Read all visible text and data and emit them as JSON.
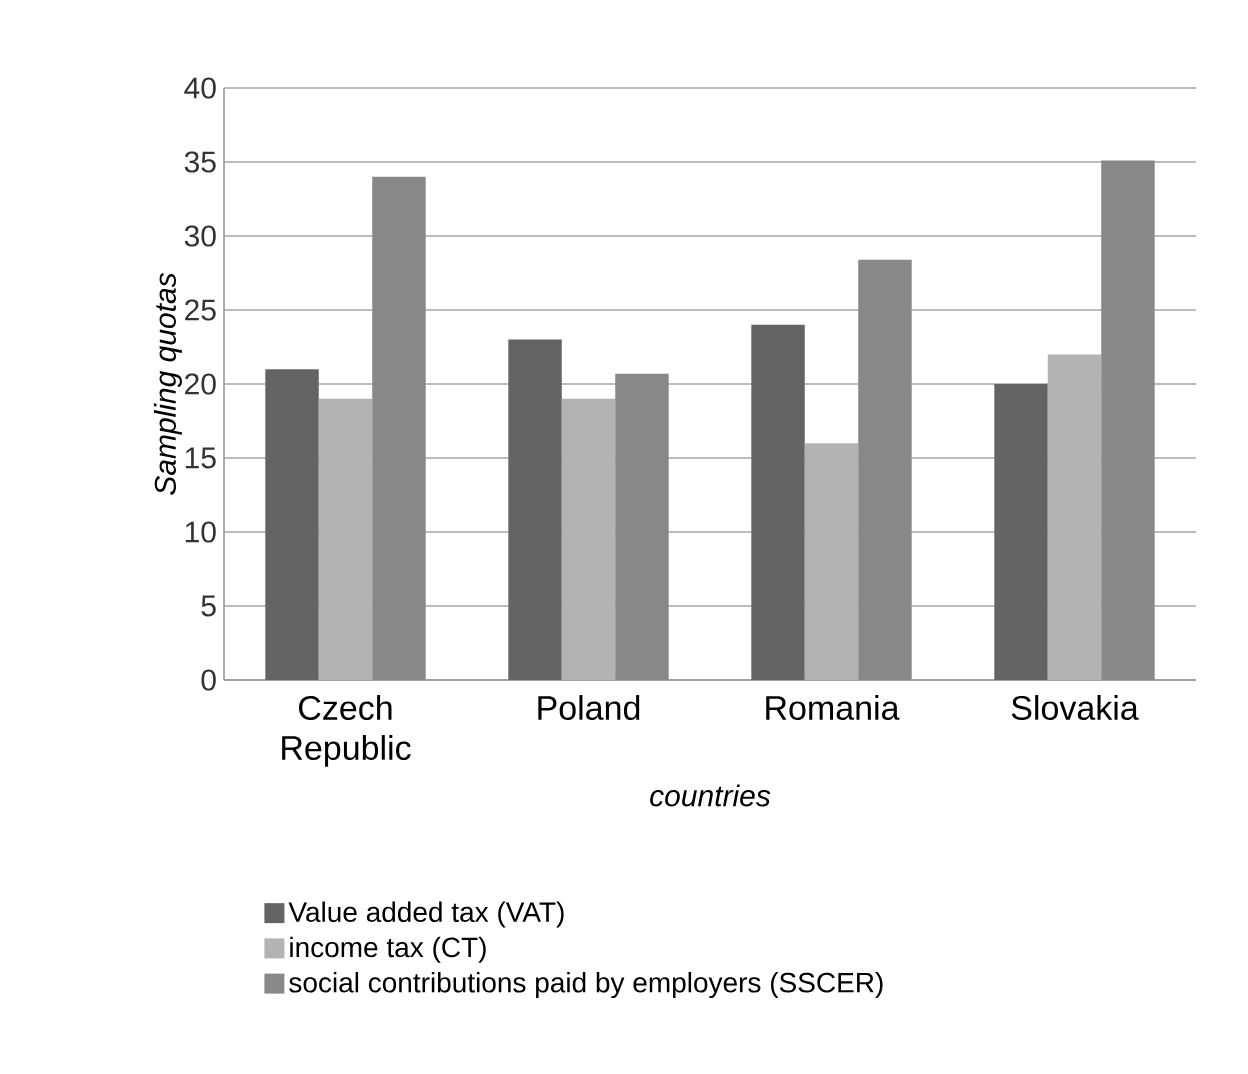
{
  "chart_data": {
    "type": "bar",
    "xlabel": "countries",
    "ylabel": "Sampling quotas",
    "categories": [
      "Czech Republic",
      "Poland",
      "Romania",
      "Slovakia"
    ],
    "series": [
      {
        "name": "Value added tax (VAT)",
        "color": "#646466",
        "values": [
          21,
          23,
          24,
          20
        ]
      },
      {
        "name": "income tax (CT)",
        "color": "#b3b3b5",
        "values": [
          19,
          19,
          16,
          22
        ]
      },
      {
        "name": "social contributions paid by employers (SSCER)",
        "color": "#88888b",
        "values": [
          34,
          20.7,
          28.4,
          35.1
        ]
      }
    ],
    "ylim": [
      0,
      40
    ],
    "yticks": [
      0,
      5,
      10,
      15,
      20,
      25,
      30,
      35,
      40
    ],
    "grid": "y",
    "legend": "bottom"
  }
}
